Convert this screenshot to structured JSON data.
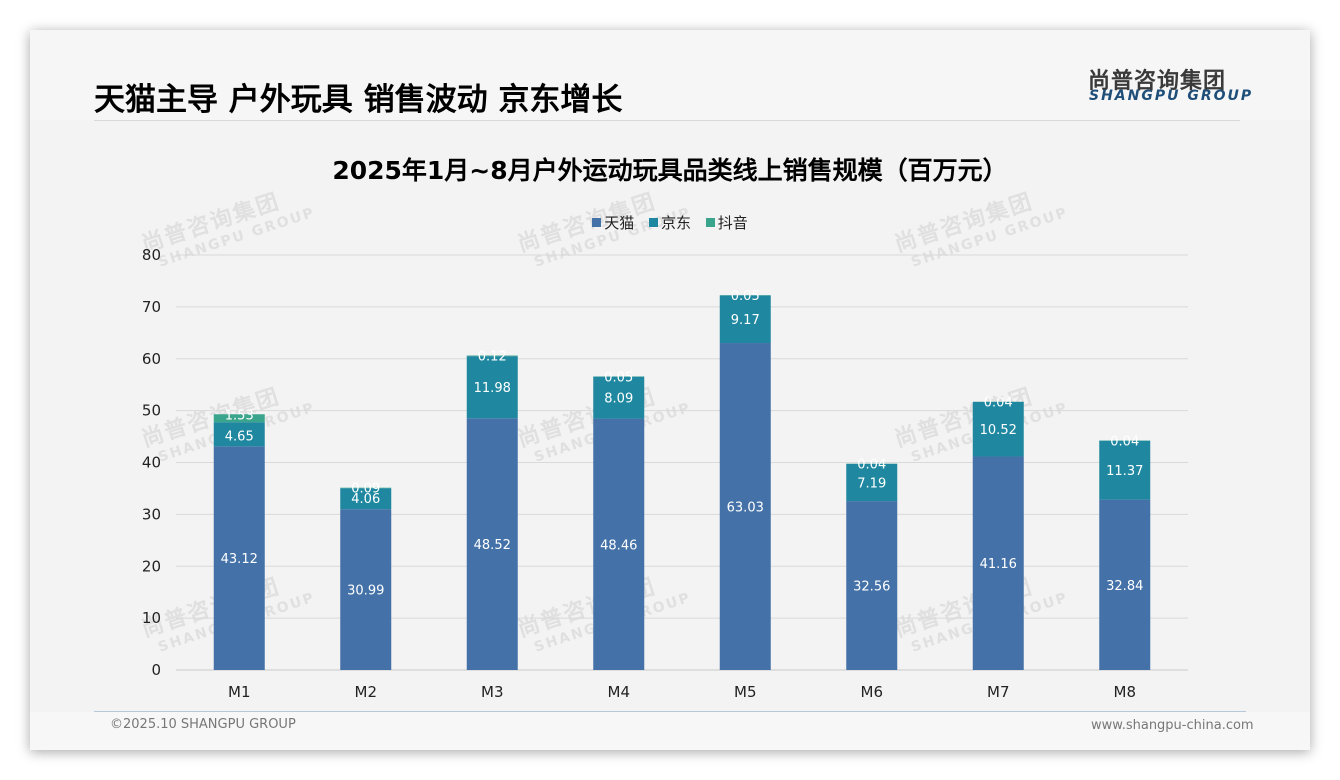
{
  "header": {
    "headline": "天猫主导 户外玩具 销售波动 京东增长",
    "logo_cn": "尚普咨询集团",
    "logo_en": "SHANGPU GROUP"
  },
  "watermark": {
    "cn": "尚普咨询集团",
    "en": "SHANGPU GROUP"
  },
  "footer": {
    "copyright": "©2025.10 SHANGPU GROUP",
    "website": "www.shangpu-china.com"
  },
  "colors": {
    "tmall": "#4472a8",
    "jd": "#1f88a0",
    "douyin": "#3aa58c",
    "grid": "#d9d9d9"
  },
  "chart_data": {
    "type": "bar",
    "stacked": true,
    "title": "2025年1月~8月户外运动玩具品类线上销售规模（百万元）",
    "xlabel": "",
    "ylabel": "",
    "categories": [
      "M1",
      "M2",
      "M3",
      "M4",
      "M5",
      "M6",
      "M7",
      "M8"
    ],
    "series": [
      {
        "name": "天猫",
        "color": "#4472a8",
        "values": [
          43.12,
          30.99,
          48.52,
          48.46,
          63.03,
          32.56,
          41.16,
          32.84
        ]
      },
      {
        "name": "京东",
        "color": "#1f88a0",
        "values": [
          4.65,
          4.06,
          11.98,
          8.09,
          9.17,
          7.19,
          10.52,
          11.37
        ]
      },
      {
        "name": "抖音",
        "color": "#3aa58c",
        "values": [
          1.53,
          0.09,
          0.12,
          0.05,
          0.05,
          0.04,
          0.04,
          0.04
        ]
      }
    ],
    "ylim": [
      0,
      80
    ],
    "yticks": [
      0,
      10,
      20,
      30,
      40,
      50,
      60,
      70,
      80
    ],
    "grid": true,
    "legend_position": "top-center",
    "data_labels": true
  }
}
